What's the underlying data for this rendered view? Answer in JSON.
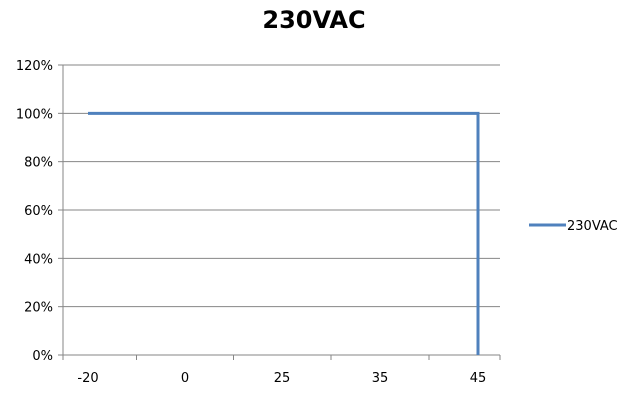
{
  "chart_data": {
    "type": "line",
    "title": "230VAC",
    "xlabel": "",
    "ylabel": "",
    "categories": [
      "-20",
      "0",
      "25",
      "35",
      "45"
    ],
    "y_tick_labels": [
      "0%",
      "20%",
      "40%",
      "60%",
      "80%",
      "100%",
      "120%"
    ],
    "ylim": [
      0,
      120
    ],
    "grid": true,
    "legend": "right",
    "series": [
      {
        "name": "230VAC",
        "color": "#4f81bd",
        "points": [
          {
            "x": -20,
            "y": 100
          },
          {
            "x": 45,
            "y": 100
          },
          {
            "x": 45,
            "y": 0
          }
        ]
      }
    ]
  }
}
